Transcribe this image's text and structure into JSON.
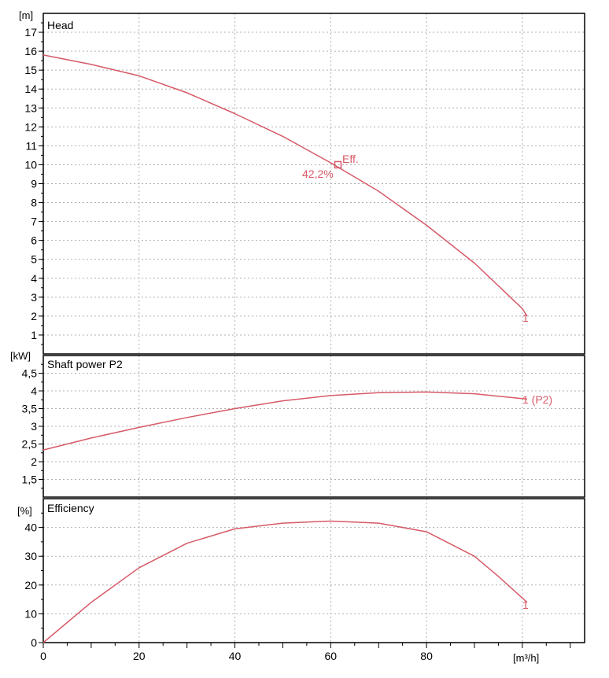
{
  "colors": {
    "curve": "#d65a68",
    "frame": "#000000",
    "grid": "#b0b0b0"
  },
  "x_axis": {
    "unit": "[m³/h]",
    "range": [
      0,
      113
    ],
    "major_ticks": [
      0,
      20,
      40,
      60,
      80
    ],
    "minor_step": 5
  },
  "chart_data": [
    {
      "type": "line",
      "title": "Head",
      "unit": "[m]",
      "ylim": [
        0,
        18
      ],
      "yticks": [
        1,
        2,
        3,
        4,
        5,
        6,
        7,
        8,
        9,
        10,
        11,
        12,
        13,
        14,
        15,
        16,
        17
      ],
      "grid": true,
      "series": [
        {
          "name": "1",
          "x": [
            0,
            10,
            20,
            30,
            40,
            50,
            60,
            70,
            80,
            90,
            100,
            101
          ],
          "y": [
            15.8,
            15.3,
            14.7,
            13.8,
            12.7,
            11.5,
            10.1,
            8.6,
            6.8,
            4.8,
            2.4,
            2.0
          ]
        }
      ],
      "annotation": {
        "label": "Eff.",
        "value": "42,2%",
        "x": 61.5,
        "y": 10.0
      }
    },
    {
      "type": "line",
      "title": "Shaft power P2",
      "unit": "[kW]",
      "ylim": [
        1,
        5
      ],
      "yticks": [
        "1,5",
        "2",
        "2,5",
        "3",
        "3,5",
        "4",
        "4,5"
      ],
      "ytick_values": [
        1.5,
        2,
        2.5,
        3,
        3.5,
        4,
        4.5
      ],
      "grid": true,
      "series": [
        {
          "name": "1 (P2)",
          "x": [
            0,
            10,
            20,
            30,
            40,
            50,
            60,
            70,
            80,
            90,
            101
          ],
          "y": [
            2.33,
            2.67,
            2.97,
            3.25,
            3.5,
            3.72,
            3.87,
            3.95,
            3.97,
            3.92,
            3.77
          ]
        }
      ]
    },
    {
      "type": "line",
      "title": "Efficiency",
      "unit": "[%]",
      "ylim": [
        0,
        50
      ],
      "yticks": [
        0,
        10,
        20,
        30,
        40
      ],
      "grid": true,
      "series": [
        {
          "name": "1",
          "x": [
            0,
            10,
            20,
            30,
            40,
            50,
            60,
            70,
            80,
            90,
            95,
            101
          ],
          "y": [
            0,
            14,
            26,
            34.5,
            39.5,
            41.5,
            42.2,
            41.5,
            38.5,
            30,
            23,
            14
          ]
        }
      ]
    }
  ]
}
